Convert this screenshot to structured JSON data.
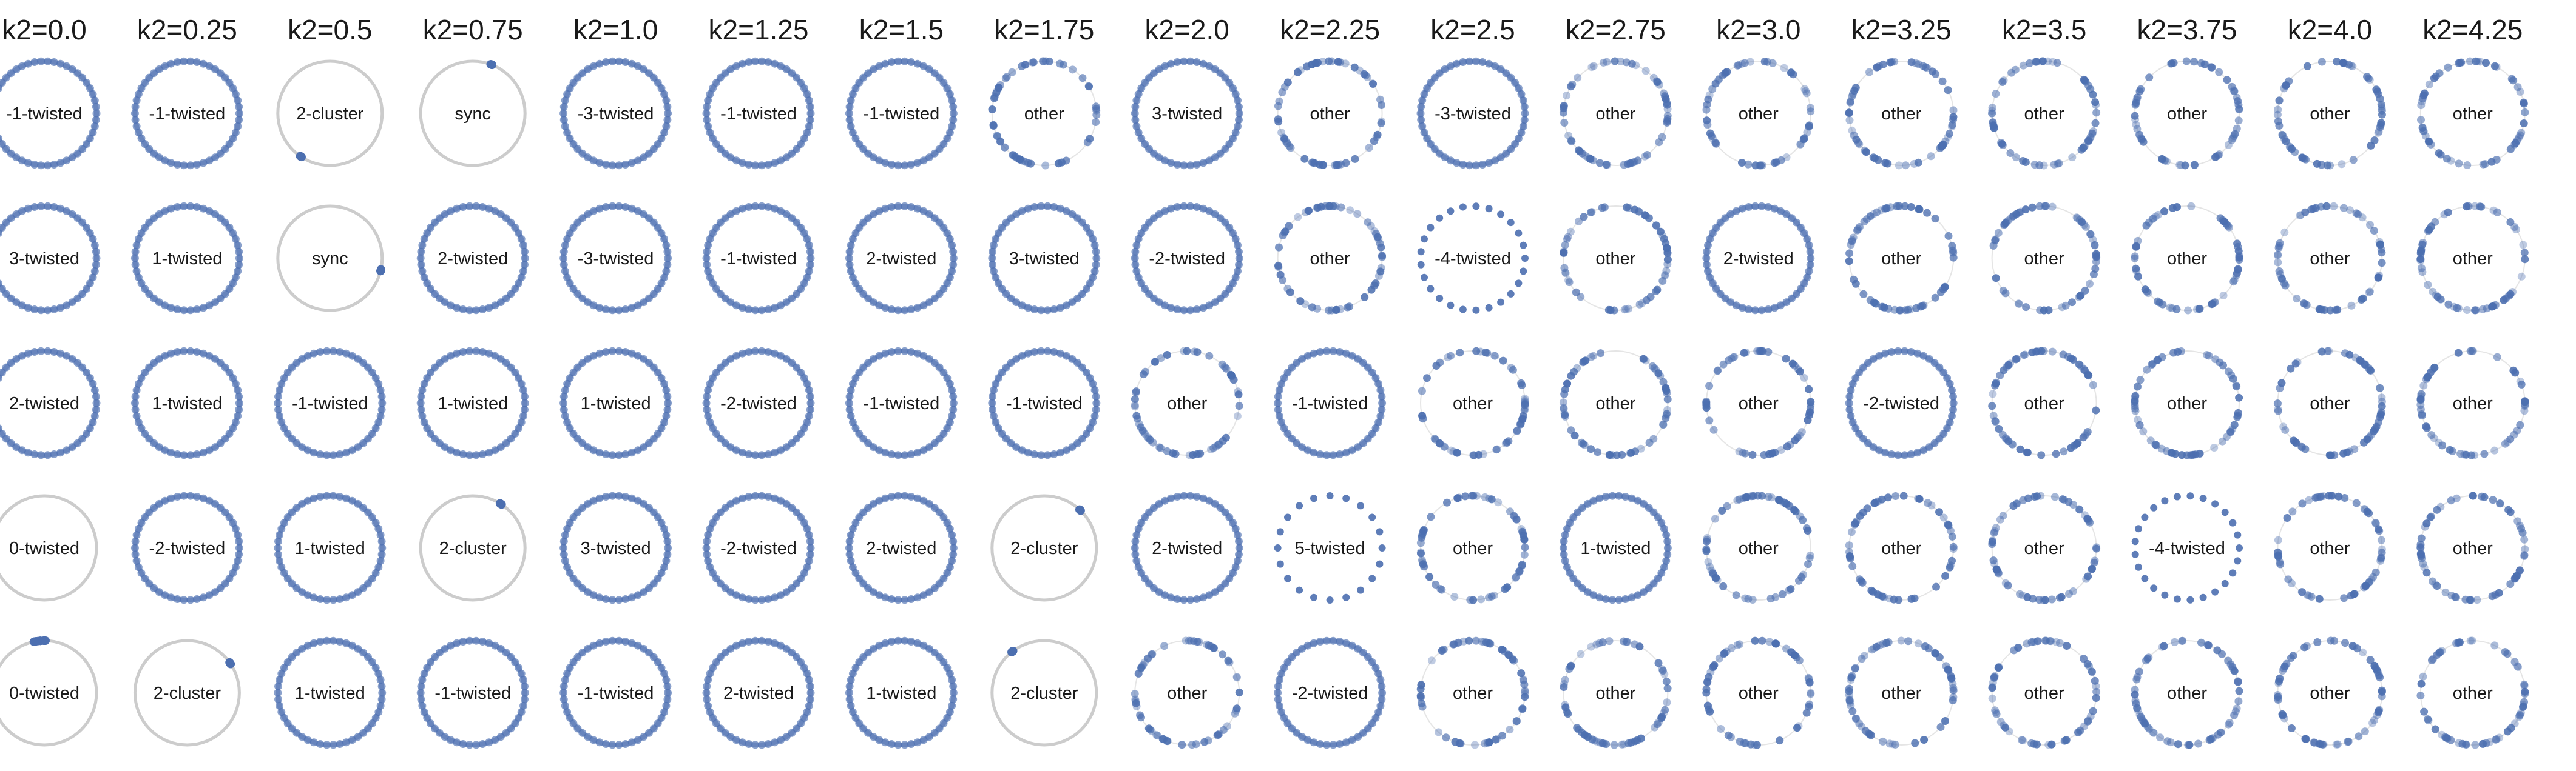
{
  "chart_data": {
    "type": "scatter",
    "colors": {
      "oscillator": "#4c6fb0",
      "empty_ring": "#cccccc"
    },
    "columns": [
      "k2=0.0",
      "k2=0.25",
      "k2=0.5",
      "k2=0.75",
      "k2=1.0",
      "k2=1.25",
      "k2=1.5",
      "k2=1.75",
      "k2=2.0",
      "k2=2.25",
      "k2=2.5",
      "k2=2.75",
      "k2=3.0",
      "k2=3.25",
      "k2=3.5",
      "k2=3.75",
      "k2=4.0",
      "k2=4.25"
    ],
    "k2_values": [
      0.0,
      0.25,
      0.5,
      0.75,
      1.0,
      1.25,
      1.5,
      1.75,
      2.0,
      2.25,
      2.5,
      2.75,
      3.0,
      3.25,
      3.5,
      3.75,
      4.0,
      4.25
    ],
    "rows": [
      [
        "-1-twisted",
        "-1-twisted",
        "2-cluster",
        "sync",
        "-3-twisted",
        "-1-twisted",
        "-1-twisted",
        "other",
        "3-twisted",
        "other",
        "-3-twisted",
        "other",
        "other",
        "other",
        "other",
        "other",
        "other",
        "other"
      ],
      [
        "3-twisted",
        "1-twisted",
        "sync",
        "2-twisted",
        "-3-twisted",
        "-1-twisted",
        "2-twisted",
        "3-twisted",
        "-2-twisted",
        "other",
        "-4-twisted",
        "other",
        "2-twisted",
        "other",
        "other",
        "other",
        "other",
        "other"
      ],
      [
        "2-twisted",
        "1-twisted",
        "-1-twisted",
        "1-twisted",
        "1-twisted",
        "-2-twisted",
        "-1-twisted",
        "-1-twisted",
        "other",
        "-1-twisted",
        "other",
        "other",
        "other",
        "-2-twisted",
        "other",
        "other",
        "other",
        "other"
      ],
      [
        "0-twisted",
        "-2-twisted",
        "1-twisted",
        "2-cluster",
        "3-twisted",
        "-2-twisted",
        "2-twisted",
        "2-cluster",
        "2-twisted",
        "5-twisted",
        "other",
        "1-twisted",
        "other",
        "other",
        "other",
        "-4-twisted",
        "other",
        "other"
      ],
      [
        "0-twisted",
        "2-cluster",
        "1-twisted",
        "-1-twisted",
        "-1-twisted",
        "2-twisted",
        "1-twisted",
        "2-cluster",
        "other",
        "-2-twisted",
        "other",
        "other",
        "other",
        "other",
        "other",
        "other",
        "other",
        "other"
      ]
    ]
  }
}
